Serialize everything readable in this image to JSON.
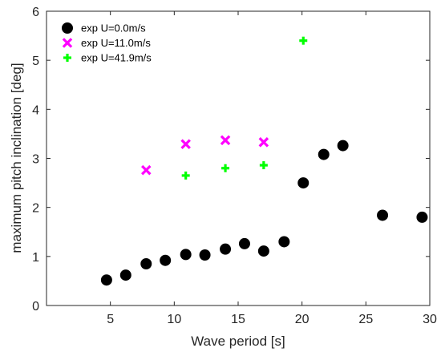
{
  "chart_data": {
    "type": "scatter",
    "title": "",
    "xlabel": "Wave period [s]",
    "ylabel": "maximum pitch inclination [deg]",
    "xlim": [
      0,
      30
    ],
    "ylim": [
      0,
      6
    ],
    "xticks": [
      5,
      10,
      15,
      20,
      25,
      30
    ],
    "yticks": [
      0,
      1,
      2,
      3,
      4,
      5,
      6
    ],
    "grid": false,
    "legend_position": "top-left",
    "series": [
      {
        "name": "exp U=0.0m/s",
        "marker": "circle",
        "color": "#000000",
        "points": [
          {
            "x": 4.7,
            "y": 0.52
          },
          {
            "x": 6.2,
            "y": 0.62
          },
          {
            "x": 7.8,
            "y": 0.85
          },
          {
            "x": 9.3,
            "y": 0.92
          },
          {
            "x": 10.9,
            "y": 1.04
          },
          {
            "x": 12.4,
            "y": 1.03
          },
          {
            "x": 14.0,
            "y": 1.15
          },
          {
            "x": 15.5,
            "y": 1.26
          },
          {
            "x": 17.0,
            "y": 1.11
          },
          {
            "x": 18.6,
            "y": 1.3
          },
          {
            "x": 20.1,
            "y": 2.5
          },
          {
            "x": 21.7,
            "y": 3.08
          },
          {
            "x": 23.2,
            "y": 3.26
          },
          {
            "x": 26.3,
            "y": 1.84
          },
          {
            "x": 29.4,
            "y": 1.8
          }
        ]
      },
      {
        "name": "exp U=11.0m/s",
        "marker": "x",
        "color": "#ff00ff",
        "points": [
          {
            "x": 7.8,
            "y": 2.76
          },
          {
            "x": 10.9,
            "y": 3.29
          },
          {
            "x": 14.0,
            "y": 3.37
          },
          {
            "x": 17.0,
            "y": 3.33
          }
        ]
      },
      {
        "name": "exp U=41.9m/s",
        "marker": "plus",
        "color": "#00ff00",
        "points": [
          {
            "x": 10.9,
            "y": 2.65
          },
          {
            "x": 14.0,
            "y": 2.8
          },
          {
            "x": 17.0,
            "y": 2.86
          },
          {
            "x": 20.1,
            "y": 5.4
          }
        ]
      }
    ]
  }
}
